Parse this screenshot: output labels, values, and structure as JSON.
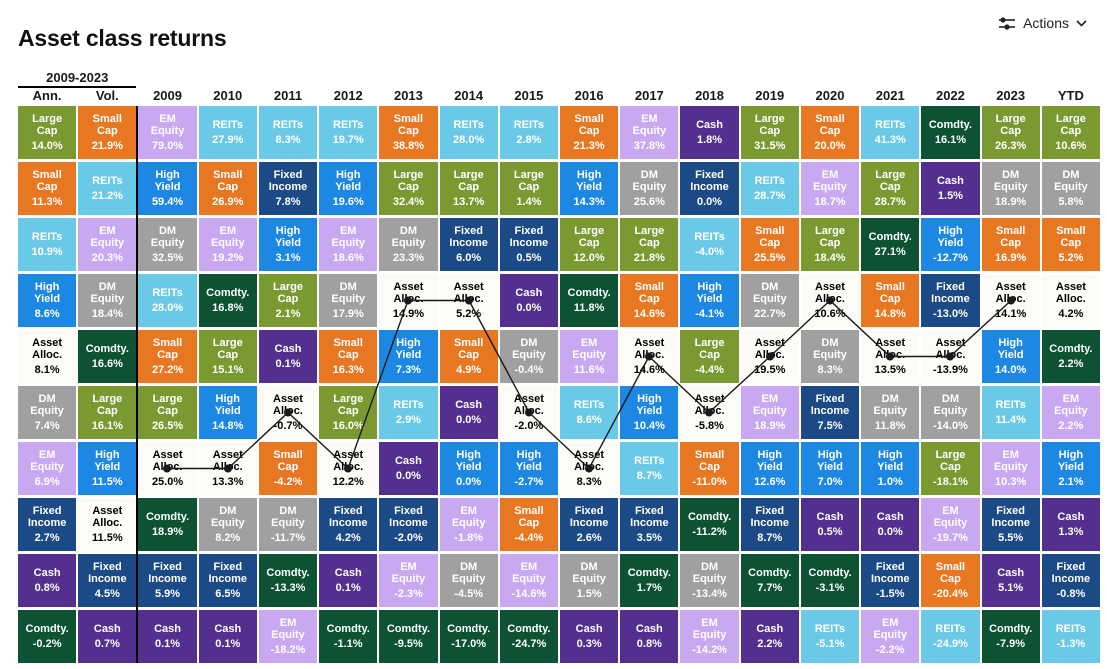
{
  "page": {
    "title": "Asset class returns"
  },
  "actions": {
    "label": "Actions"
  },
  "header": {
    "range_label": "2009-2023"
  },
  "asset_colors": {
    "Large Cap": "#7A9A31",
    "Small Cap": "#E87722",
    "REITs": "#6AC9E6",
    "High Yield": "#1D87E4",
    "Asset Alloc.": "#FCFBF8",
    "DM Equity": "#A0A0A0",
    "EM Equity": "#C8A9F1",
    "Fixed Income": "#1B4A87",
    "Cash": "#53308F",
    "Comdty.": "#0C5233"
  },
  "chart_data": {
    "type": "table",
    "title": "Asset class returns",
    "columns": [
      "Ann.",
      "Vol.",
      "2009",
      "2010",
      "2011",
      "2012",
      "2013",
      "2014",
      "2015",
      "2016",
      "2017",
      "2018",
      "2019",
      "2020",
      "2021",
      "2022",
      "2023",
      "YTD"
    ],
    "line_series": {
      "asset": "Asset Alloc.",
      "start_column": "2009",
      "end_column": "2023",
      "color": "#1a1a1a"
    },
    "cells": [
      [
        {
          "a": "Large Cap",
          "v": "14.0%"
        },
        {
          "a": "Small Cap",
          "v": "11.3%"
        },
        {
          "a": "REITs",
          "v": "10.9%"
        },
        {
          "a": "High Yield",
          "v": "8.6%"
        },
        {
          "a": "Asset Alloc.",
          "v": "8.1%"
        },
        {
          "a": "DM Equity",
          "v": "7.4%"
        },
        {
          "a": "EM Equity",
          "v": "6.9%"
        },
        {
          "a": "Fixed Income",
          "v": "2.7%"
        },
        {
          "a": "Cash",
          "v": "0.8%"
        },
        {
          "a": "Comdty.",
          "v": "-0.2%"
        }
      ],
      [
        {
          "a": "Small Cap",
          "v": "21.9%"
        },
        {
          "a": "REITs",
          "v": "21.2%"
        },
        {
          "a": "EM Equity",
          "v": "20.3%"
        },
        {
          "a": "DM Equity",
          "v": "18.4%"
        },
        {
          "a": "Comdty.",
          "v": "16.6%"
        },
        {
          "a": "Large Cap",
          "v": "16.1%"
        },
        {
          "a": "High Yield",
          "v": "11.5%"
        },
        {
          "a": "Asset Alloc.",
          "v": "11.5%"
        },
        {
          "a": "Fixed Income",
          "v": "4.5%"
        },
        {
          "a": "Cash",
          "v": "0.7%"
        }
      ],
      [
        {
          "a": "EM Equity",
          "v": "79.0%"
        },
        {
          "a": "High Yield",
          "v": "59.4%"
        },
        {
          "a": "DM Equity",
          "v": "32.5%"
        },
        {
          "a": "REITs",
          "v": "28.0%"
        },
        {
          "a": "Small Cap",
          "v": "27.2%"
        },
        {
          "a": "Large Cap",
          "v": "26.5%"
        },
        {
          "a": "Asset Alloc.",
          "v": "25.0%"
        },
        {
          "a": "Comdty.",
          "v": "18.9%"
        },
        {
          "a": "Fixed Income",
          "v": "5.9%"
        },
        {
          "a": "Cash",
          "v": "0.1%"
        }
      ],
      [
        {
          "a": "REITs",
          "v": "27.9%"
        },
        {
          "a": "Small Cap",
          "v": "26.9%"
        },
        {
          "a": "EM Equity",
          "v": "19.2%"
        },
        {
          "a": "Comdty.",
          "v": "16.8%"
        },
        {
          "a": "Large Cap",
          "v": "15.1%"
        },
        {
          "a": "High Yield",
          "v": "14.8%"
        },
        {
          "a": "Asset Alloc.",
          "v": "13.3%"
        },
        {
          "a": "DM Equity",
          "v": "8.2%"
        },
        {
          "a": "Fixed Income",
          "v": "6.5%"
        },
        {
          "a": "Cash",
          "v": "0.1%"
        }
      ],
      [
        {
          "a": "REITs",
          "v": "8.3%"
        },
        {
          "a": "Fixed Income",
          "v": "7.8%"
        },
        {
          "a": "High Yield",
          "v": "3.1%"
        },
        {
          "a": "Large Cap",
          "v": "2.1%"
        },
        {
          "a": "Cash",
          "v": "0.1%"
        },
        {
          "a": "Asset Alloc.",
          "v": "-0.7%"
        },
        {
          "a": "Small Cap",
          "v": "-4.2%"
        },
        {
          "a": "DM Equity",
          "v": "-11.7%"
        },
        {
          "a": "Comdty.",
          "v": "-13.3%"
        },
        {
          "a": "EM Equity",
          "v": "-18.2%"
        }
      ],
      [
        {
          "a": "REITs",
          "v": "19.7%"
        },
        {
          "a": "High Yield",
          "v": "19.6%"
        },
        {
          "a": "EM Equity",
          "v": "18.6%"
        },
        {
          "a": "DM Equity",
          "v": "17.9%"
        },
        {
          "a": "Small Cap",
          "v": "16.3%"
        },
        {
          "a": "Large Cap",
          "v": "16.0%"
        },
        {
          "a": "Asset Alloc.",
          "v": "12.2%"
        },
        {
          "a": "Fixed Income",
          "v": "4.2%"
        },
        {
          "a": "Cash",
          "v": "0.1%"
        },
        {
          "a": "Comdty.",
          "v": "-1.1%"
        }
      ],
      [
        {
          "a": "Small Cap",
          "v": "38.8%"
        },
        {
          "a": "Large Cap",
          "v": "32.4%"
        },
        {
          "a": "DM Equity",
          "v": "23.3%"
        },
        {
          "a": "Asset Alloc.",
          "v": "14.9%"
        },
        {
          "a": "High Yield",
          "v": "7.3%"
        },
        {
          "a": "REITs",
          "v": "2.9%"
        },
        {
          "a": "Cash",
          "v": "0.0%"
        },
        {
          "a": "Fixed Income",
          "v": "-2.0%"
        },
        {
          "a": "EM Equity",
          "v": "-2.3%"
        },
        {
          "a": "Comdty.",
          "v": "-9.5%"
        }
      ],
      [
        {
          "a": "REITs",
          "v": "28.0%"
        },
        {
          "a": "Large Cap",
          "v": "13.7%"
        },
        {
          "a": "Fixed Income",
          "v": "6.0%"
        },
        {
          "a": "Asset Alloc.",
          "v": "5.2%"
        },
        {
          "a": "Small Cap",
          "v": "4.9%"
        },
        {
          "a": "Cash",
          "v": "0.0%"
        },
        {
          "a": "High Yield",
          "v": "0.0%"
        },
        {
          "a": "EM Equity",
          "v": "-1.8%"
        },
        {
          "a": "DM Equity",
          "v": "-4.5%"
        },
        {
          "a": "Comdty.",
          "v": "-17.0%"
        }
      ],
      [
        {
          "a": "REITs",
          "v": "2.8%"
        },
        {
          "a": "Large Cap",
          "v": "1.4%"
        },
        {
          "a": "Fixed Income",
          "v": "0.5%"
        },
        {
          "a": "Cash",
          "v": "0.0%"
        },
        {
          "a": "DM Equity",
          "v": "-0.4%"
        },
        {
          "a": "Asset Alloc.",
          "v": "-2.0%"
        },
        {
          "a": "High Yield",
          "v": "-2.7%"
        },
        {
          "a": "Small Cap",
          "v": "-4.4%"
        },
        {
          "a": "EM Equity",
          "v": "-14.6%"
        },
        {
          "a": "Comdty.",
          "v": "-24.7%"
        }
      ],
      [
        {
          "a": "Small Cap",
          "v": "21.3%"
        },
        {
          "a": "High Yield",
          "v": "14.3%"
        },
        {
          "a": "Large Cap",
          "v": "12.0%"
        },
        {
          "a": "Comdty.",
          "v": "11.8%"
        },
        {
          "a": "EM Equity",
          "v": "11.6%"
        },
        {
          "a": "REITs",
          "v": "8.6%"
        },
        {
          "a": "Asset Alloc.",
          "v": "8.3%"
        },
        {
          "a": "Fixed Income",
          "v": "2.6%"
        },
        {
          "a": "DM Equity",
          "v": "1.5%"
        },
        {
          "a": "Cash",
          "v": "0.3%"
        }
      ],
      [
        {
          "a": "EM Equity",
          "v": "37.8%"
        },
        {
          "a": "DM Equity",
          "v": "25.6%"
        },
        {
          "a": "Large Cap",
          "v": "21.8%"
        },
        {
          "a": "Small Cap",
          "v": "14.6%"
        },
        {
          "a": "Asset Alloc.",
          "v": "14.6%"
        },
        {
          "a": "High Yield",
          "v": "10.4%"
        },
        {
          "a": "REITs",
          "v": "8.7%"
        },
        {
          "a": "Fixed Income",
          "v": "3.5%"
        },
        {
          "a": "Comdty.",
          "v": "1.7%"
        },
        {
          "a": "Cash",
          "v": "0.8%"
        }
      ],
      [
        {
          "a": "Cash",
          "v": "1.8%"
        },
        {
          "a": "Fixed Income",
          "v": "0.0%"
        },
        {
          "a": "REITs",
          "v": "-4.0%"
        },
        {
          "a": "High Yield",
          "v": "-4.1%"
        },
        {
          "a": "Large Cap",
          "v": "-4.4%"
        },
        {
          "a": "Asset Alloc.",
          "v": "-5.8%"
        },
        {
          "a": "Small Cap",
          "v": "-11.0%"
        },
        {
          "a": "Comdty.",
          "v": "-11.2%"
        },
        {
          "a": "DM Equity",
          "v": "-13.4%"
        },
        {
          "a": "EM Equity",
          "v": "-14.2%"
        }
      ],
      [
        {
          "a": "Large Cap",
          "v": "31.5%"
        },
        {
          "a": "REITs",
          "v": "28.7%"
        },
        {
          "a": "Small Cap",
          "v": "25.5%"
        },
        {
          "a": "DM Equity",
          "v": "22.7%"
        },
        {
          "a": "Asset Alloc.",
          "v": "19.5%"
        },
        {
          "a": "EM Equity",
          "v": "18.9%"
        },
        {
          "a": "High Yield",
          "v": "12.6%"
        },
        {
          "a": "Fixed Income",
          "v": "8.7%"
        },
        {
          "a": "Comdty.",
          "v": "7.7%"
        },
        {
          "a": "Cash",
          "v": "2.2%"
        }
      ],
      [
        {
          "a": "Small Cap",
          "v": "20.0%"
        },
        {
          "a": "EM Equity",
          "v": "18.7%"
        },
        {
          "a": "Large Cap",
          "v": "18.4%"
        },
        {
          "a": "Asset Alloc.",
          "v": "10.6%"
        },
        {
          "a": "DM Equity",
          "v": "8.3%"
        },
        {
          "a": "Fixed Income",
          "v": "7.5%"
        },
        {
          "a": "High Yield",
          "v": "7.0%"
        },
        {
          "a": "Cash",
          "v": "0.5%"
        },
        {
          "a": "Comdty.",
          "v": "-3.1%"
        },
        {
          "a": "REITs",
          "v": "-5.1%"
        }
      ],
      [
        {
          "a": "REITs",
          "v": "41.3%"
        },
        {
          "a": "Large Cap",
          "v": "28.7%"
        },
        {
          "a": "Comdty.",
          "v": "27.1%"
        },
        {
          "a": "Small Cap",
          "v": "14.8%"
        },
        {
          "a": "Asset Alloc.",
          "v": "13.5%"
        },
        {
          "a": "DM Equity",
          "v": "11.8%"
        },
        {
          "a": "High Yield",
          "v": "1.0%"
        },
        {
          "a": "Cash",
          "v": "0.0%"
        },
        {
          "a": "Fixed Income",
          "v": "-1.5%"
        },
        {
          "a": "EM Equity",
          "v": "-2.2%"
        }
      ],
      [
        {
          "a": "Comdty.",
          "v": "16.1%"
        },
        {
          "a": "Cash",
          "v": "1.5%"
        },
        {
          "a": "High Yield",
          "v": "-12.7%"
        },
        {
          "a": "Fixed Income",
          "v": "-13.0%"
        },
        {
          "a": "Asset Alloc.",
          "v": "-13.9%"
        },
        {
          "a": "DM Equity",
          "v": "-14.0%"
        },
        {
          "a": "Large Cap",
          "v": "-18.1%"
        },
        {
          "a": "EM Equity",
          "v": "-19.7%"
        },
        {
          "a": "Small Cap",
          "v": "-20.4%"
        },
        {
          "a": "REITs",
          "v": "-24.9%"
        }
      ],
      [
        {
          "a": "Large Cap",
          "v": "26.3%"
        },
        {
          "a": "DM Equity",
          "v": "18.9%"
        },
        {
          "a": "Small Cap",
          "v": "16.9%"
        },
        {
          "a": "Asset Alloc.",
          "v": "14.1%"
        },
        {
          "a": "High Yield",
          "v": "14.0%"
        },
        {
          "a": "REITs",
          "v": "11.4%"
        },
        {
          "a": "EM Equity",
          "v": "10.3%"
        },
        {
          "a": "Fixed Income",
          "v": "5.5%"
        },
        {
          "a": "Cash",
          "v": "5.1%"
        },
        {
          "a": "Comdty.",
          "v": "-7.9%"
        }
      ],
      [
        {
          "a": "Large Cap",
          "v": "10.6%"
        },
        {
          "a": "DM Equity",
          "v": "5.8%"
        },
        {
          "a": "Small Cap",
          "v": "5.2%"
        },
        {
          "a": "Asset Alloc.",
          "v": "4.2%"
        },
        {
          "a": "Comdty.",
          "v": "2.2%"
        },
        {
          "a": "EM Equity",
          "v": "2.2%"
        },
        {
          "a": "High Yield",
          "v": "2.1%"
        },
        {
          "a": "Cash",
          "v": "1.3%"
        },
        {
          "a": "Fixed Income",
          "v": "-0.8%"
        },
        {
          "a": "REITs",
          "v": "-1.3%"
        }
      ]
    ]
  }
}
